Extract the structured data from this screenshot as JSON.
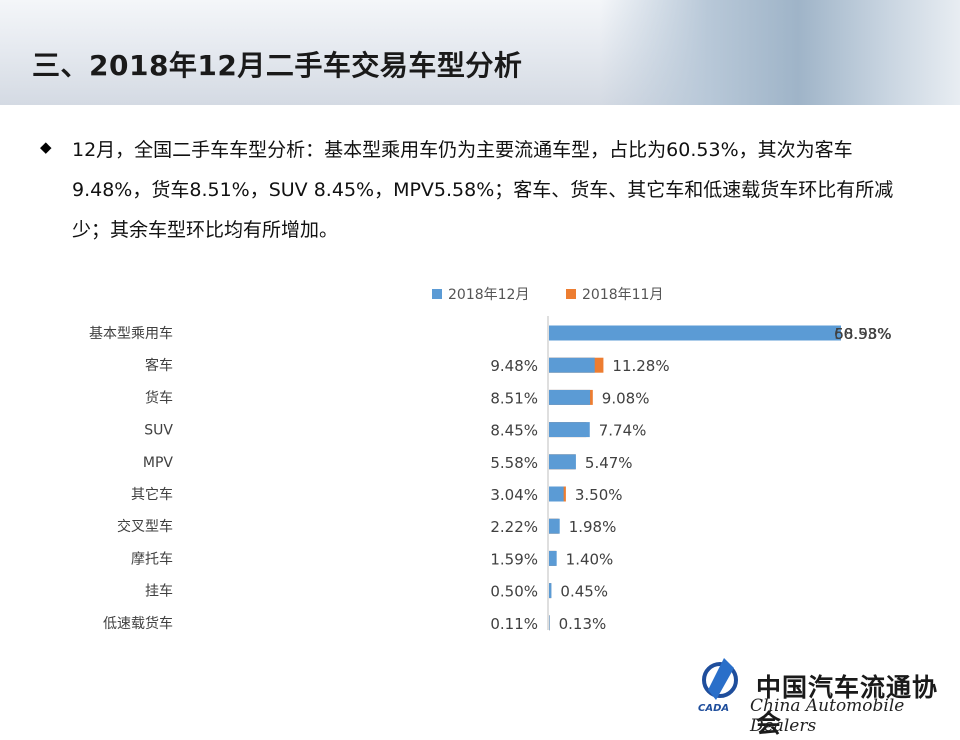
{
  "page": {
    "title": "三、2018年12月二手车交易车型分析",
    "summary": "12月，全国二手车车型分析：基本型乘用车仍为主要流通车型，占比为60.53%，其次为客车9.48%，货车8.51%，SUV 8.45%，MPV5.58%；客车、货车、其它车和低速载货车环比有所减少；其余车型环比均有所增加。"
  },
  "footer": {
    "org_cn": "中国汽车流通协会",
    "org_en": "China Automobile Dealers",
    "logo_text": "CADA"
  },
  "chart_data": {
    "type": "bar",
    "orientation": "horizontal",
    "categories": [
      "基本型乘用车",
      "客车",
      "货车",
      "SUV",
      "MPV",
      "其它车",
      "交叉型车",
      "摩托车",
      "挂车",
      "低速载货车"
    ],
    "series": [
      {
        "name": "2018年12月",
        "color": "#5b9bd5",
        "values": [
          60.53,
          9.48,
          8.51,
          8.45,
          5.58,
          3.04,
          2.22,
          1.59,
          0.5,
          0.11
        ],
        "labels": [
          "60.53%",
          "9.48%",
          "8.51%",
          "8.45%",
          "5.58%",
          "3.04%",
          "2.22%",
          "1.59%",
          "0.50%",
          "0.11%"
        ]
      },
      {
        "name": "2018年11月",
        "color": "#ed7d31",
        "values": [
          58.98,
          11.28,
          9.08,
          7.74,
          5.47,
          3.5,
          1.98,
          1.4,
          0.45,
          0.13
        ],
        "labels": [
          "58.98%",
          "11.28%",
          "9.08%",
          "7.74%",
          "5.47%",
          "3.50%",
          "1.98%",
          "1.40%",
          "0.45%",
          "0.13%"
        ]
      }
    ],
    "legend_position": "top",
    "grid": false
  }
}
